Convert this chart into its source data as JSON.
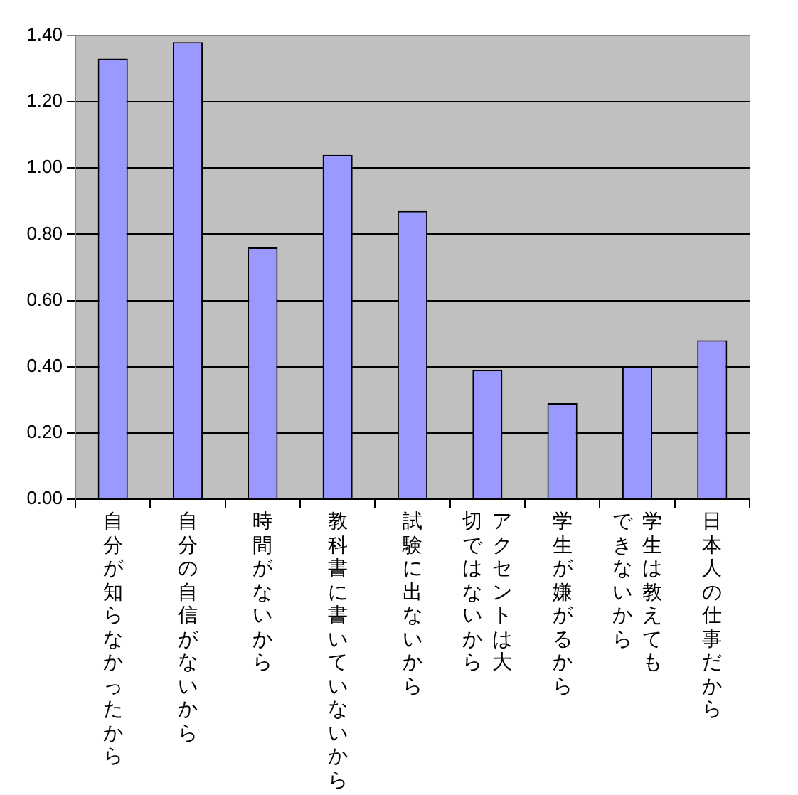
{
  "chart_data": {
    "type": "bar",
    "categories": [
      "自分が知らなかったから",
      "自分の自信がないから",
      "時間がないから",
      "教科書に書いていないから",
      "試験に出ないから",
      "アクセントは大切ではないから",
      "学生が嫌がるから",
      "学生は教えてもできないから",
      "日本人の仕事だから"
    ],
    "values": [
      1.33,
      1.38,
      0.76,
      1.04,
      0.87,
      0.39,
      0.29,
      0.4,
      0.48
    ],
    "color": "#9999ff",
    "ylim": [
      0,
      1.4
    ],
    "yticks": [
      {
        "value": 0,
        "label": "0.00"
      },
      {
        "value": 0.2,
        "label": "0.20"
      },
      {
        "value": 0.4,
        "label": "0.40"
      },
      {
        "value": 0.6,
        "label": "0.60"
      },
      {
        "value": 0.8,
        "label": "0.80"
      },
      {
        "value": 1,
        "label": "1.00"
      },
      {
        "value": 1.2,
        "label": "1.20"
      },
      {
        "value": 1.4,
        "label": "1.40"
      }
    ],
    "grid": "y",
    "legend": false
  }
}
